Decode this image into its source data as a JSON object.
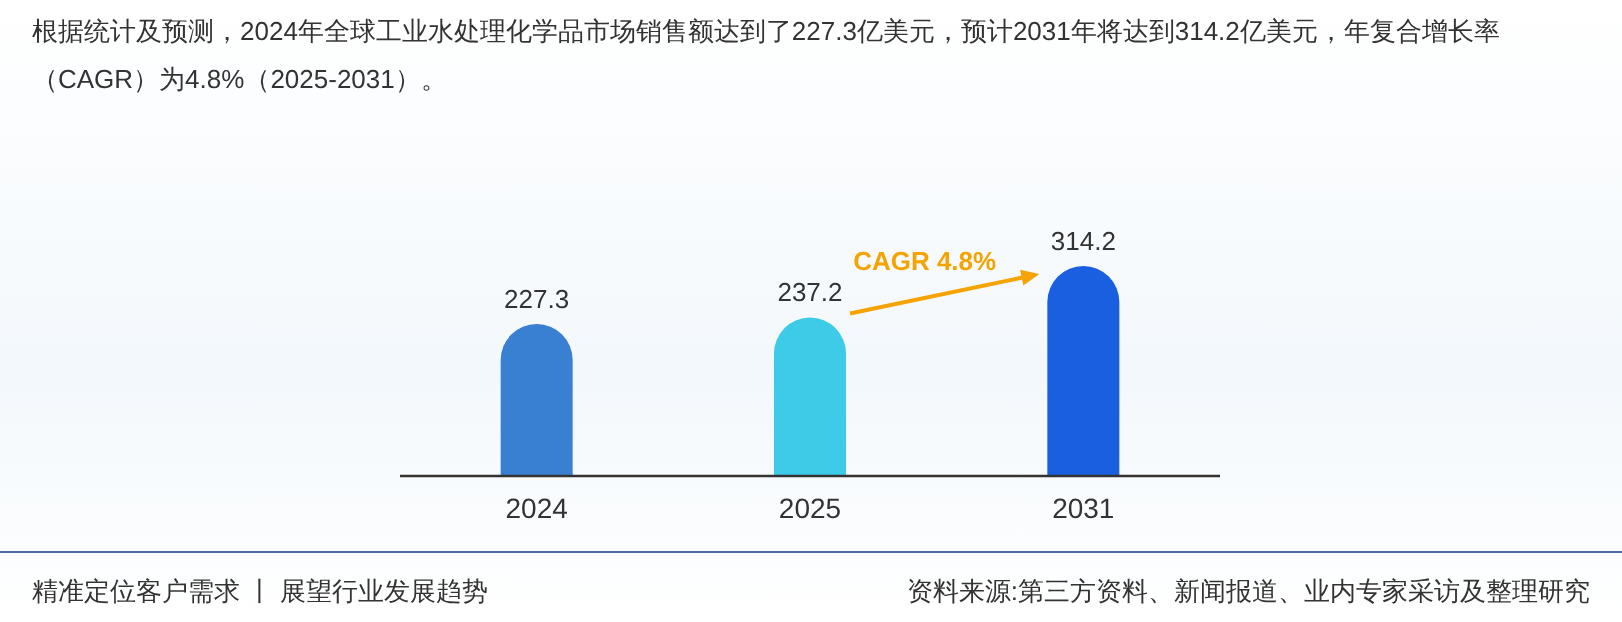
{
  "chart_data": {
    "type": "bar",
    "title": "根据统计及预测，2024年全球工业水处理化学品市场销售额达到了227.3亿美元，预计2031年将达到314.2亿美元，年复合增长率（CAGR）为4.8%（2025-2031）。",
    "categories": [
      "2024",
      "2025",
      "2031"
    ],
    "values": [
      227.3,
      237.2,
      314.2
    ],
    "colors": [
      "#3a80d2",
      "#3ecbe8",
      "#1a5fe0"
    ],
    "data_labels": true,
    "annotations": [
      "CAGR 4.8%",
      "精准定位客户需求 丨 展望行业发展趋势",
      "资料来源:第三方资料、新闻报道、业内专家采访及整理研究"
    ]
  }
}
